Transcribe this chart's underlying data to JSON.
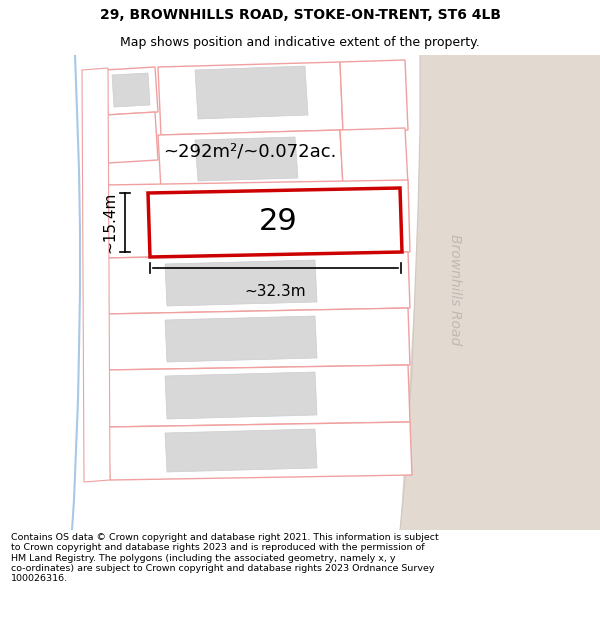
{
  "title": "29, BROWNHILLS ROAD, STOKE-ON-TRENT, ST6 4LB",
  "subtitle": "Map shows position and indicative extent of the property.",
  "footer": "Contains OS data © Crown copyright and database right 2021. This information is subject\nto Crown copyright and database rights 2023 and is reproduced with the permission of\nHM Land Registry. The polygons (including the associated geometry, namely x, y\nco-ordinates) are subject to Crown copyright and database rights 2023 Ordnance Survey\n100026316.",
  "bg_color": "#ffffff",
  "map_bg": "#f7f4f1",
  "road_fill": "#e2d9d0",
  "plot_fill": "#ffffff",
  "plot_edge": "#f0a0a0",
  "highlight_color": "#cc0000",
  "highlight_fill": "#ffffff",
  "building_fill": "#d8d8d8",
  "building_edge": "#cccccc",
  "road_label": "Brownhills Road",
  "road_label_color": "#c0bab5",
  "area_label": "~292m²/~0.072ac.",
  "property_number": "29",
  "width_label": "~32.3m",
  "height_label": "~15.4m",
  "stream_color": "#a8c8e8",
  "figsize": [
    6.0,
    6.25
  ],
  "dpi": 100,
  "title_fontsize": 10,
  "subtitle_fontsize": 9,
  "footer_fontsize": 6.8
}
